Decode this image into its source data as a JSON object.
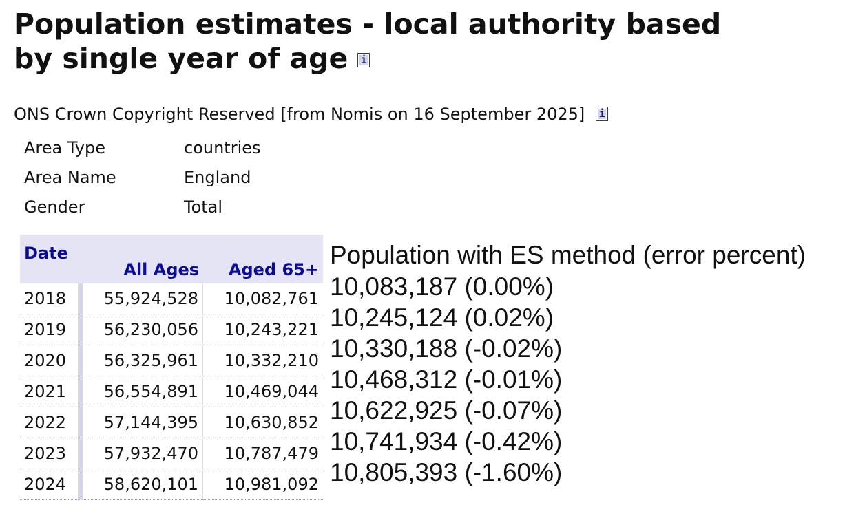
{
  "title": {
    "line1": "Population estimates - local authority based",
    "line2": "by single year of age"
  },
  "info_icon_glyph": "i",
  "source_text": "ONS Crown Copyright Reserved [from Nomis on 16 September 2025]",
  "meta": [
    {
      "key": "Area Type",
      "value": "countries"
    },
    {
      "key": "Area Name",
      "value": "England"
    },
    {
      "key": "Gender",
      "value": "Total"
    }
  ],
  "table": {
    "headers": {
      "date": "Date",
      "all_ages": "All Ages",
      "aged_65": "Aged 65+"
    },
    "rows": [
      {
        "date": "2018",
        "all_ages": "55,924,528",
        "aged_65": "10,082,761"
      },
      {
        "date": "2019",
        "all_ages": "56,230,056",
        "aged_65": "10,243,221"
      },
      {
        "date": "2020",
        "all_ages": "56,325,961",
        "aged_65": "10,332,210"
      },
      {
        "date": "2021",
        "all_ages": "56,554,891",
        "aged_65": "10,469,044"
      },
      {
        "date": "2022",
        "all_ages": "57,144,395",
        "aged_65": "10,630,852"
      },
      {
        "date": "2023",
        "all_ages": "57,932,470",
        "aged_65": "10,787,479"
      },
      {
        "date": "2024",
        "all_ages": "58,620,101",
        "aged_65": "10,981,092"
      }
    ]
  },
  "es_method": {
    "header": "Population with ES method (error percent)",
    "rows": [
      "10,083,187 (0.00%)",
      "10,245,124 (0.02%)",
      "10,330,188 (-0.02%)",
      "10,468,312 (-0.01%)",
      "10,622,925 (-0.07%)",
      "10,741,934 (-0.42%)",
      "10,805,393 (-1.60%)"
    ]
  },
  "colors": {
    "header_text": "#0a0a9c",
    "header_bg": "#e4e4f4",
    "icon_border": "#33338a"
  }
}
